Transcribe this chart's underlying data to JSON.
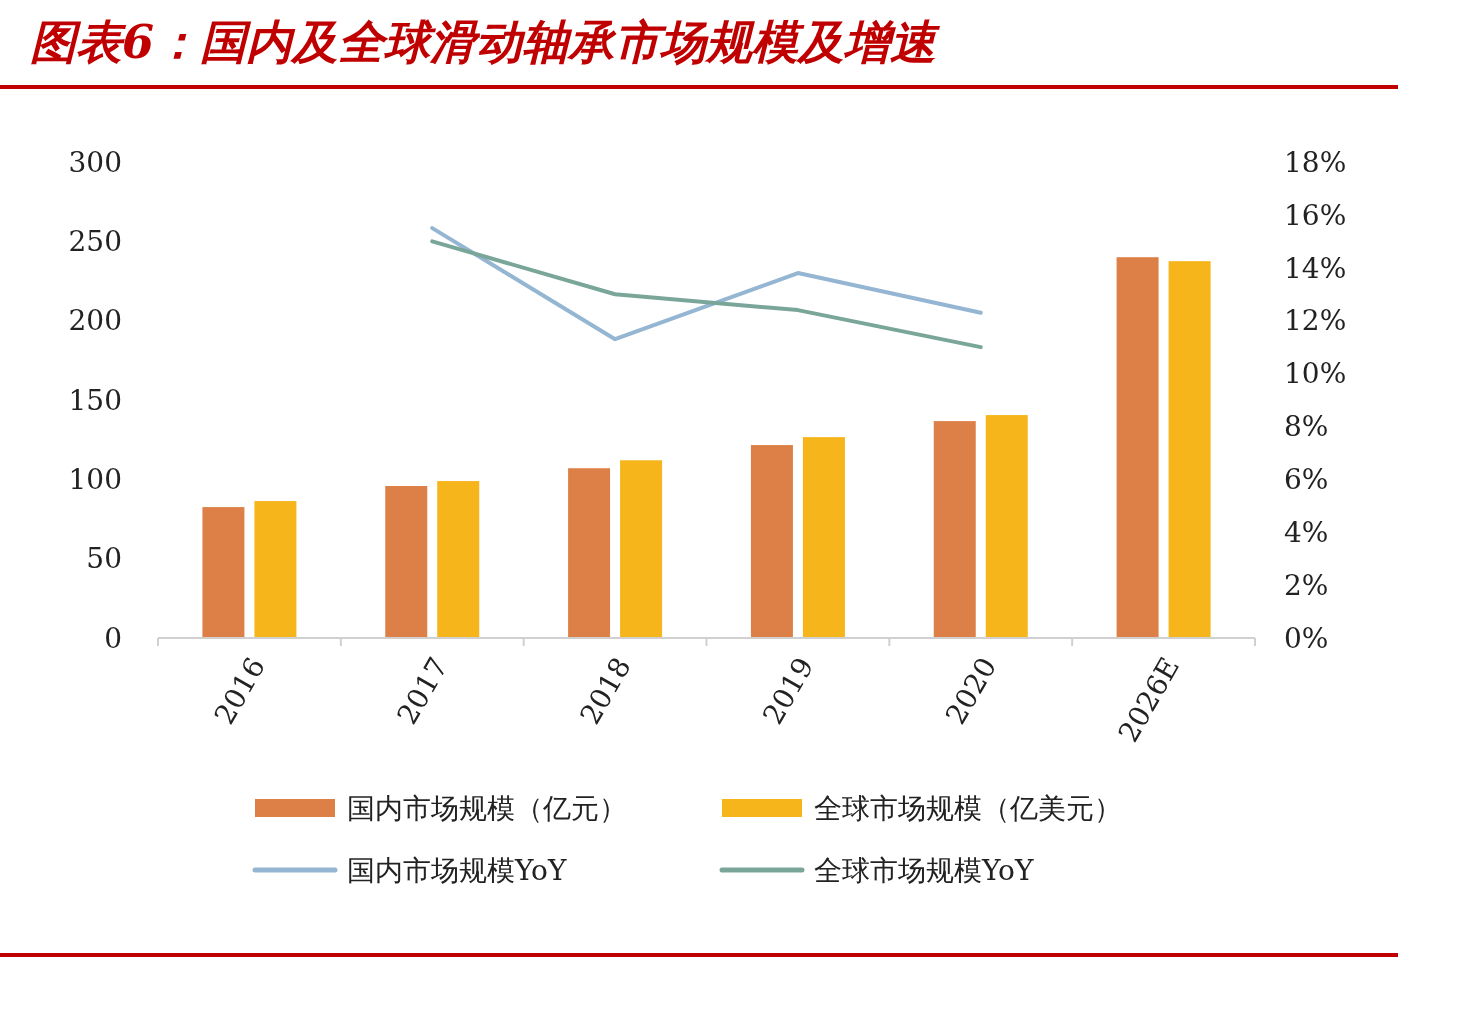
{
  "chart_data": {
    "type": "bar",
    "title": "图表6：国内及全球滑动轴承市场规模及增速",
    "categories": [
      "2016",
      "2017",
      "2018",
      "2019",
      "2020",
      "2026E"
    ],
    "series": [
      {
        "name": "国内市场规模（亿元）",
        "color": "#dd8047",
        "values": [
          82.5,
          95.8,
          107,
          121.6,
          136.7,
          240
        ]
      },
      {
        "name": "全球市场规模（亿美元）",
        "color": "#f6b51b",
        "values": [
          86.3,
          98.9,
          112,
          126.6,
          140.5,
          237.5
        ]
      },
      {
        "name": "国内市场规模YoY",
        "type": "line",
        "axis": "y2",
        "color": "#94b6d2",
        "values": [
          null,
          15.5,
          11.3,
          13.8,
          12.3,
          null
        ]
      },
      {
        "name": "全球市场规模YoY",
        "type": "line",
        "axis": "y2",
        "color": "#7aa69a",
        "values": [
          null,
          15.0,
          13.0,
          12.4,
          11.0,
          null
        ]
      }
    ],
    "ylim": [
      0,
      300
    ],
    "yticks": [
      0,
      50,
      100,
      150,
      200,
      250,
      300
    ],
    "y2lim": [
      0,
      18
    ],
    "y2ticks": [
      {
        "value": 0,
        "label": "0%"
      },
      {
        "value": 2,
        "label": "2%"
      },
      {
        "value": 4,
        "label": "4%"
      },
      {
        "value": 6,
        "label": "6%"
      },
      {
        "value": 8,
        "label": "8%"
      },
      {
        "value": 10,
        "label": "10%"
      },
      {
        "value": 12,
        "label": "12%"
      },
      {
        "value": 14,
        "label": "14%"
      },
      {
        "value": 16,
        "label": "16%"
      },
      {
        "value": 18,
        "label": "18%"
      }
    ],
    "grid": false,
    "legend": "bottom"
  }
}
